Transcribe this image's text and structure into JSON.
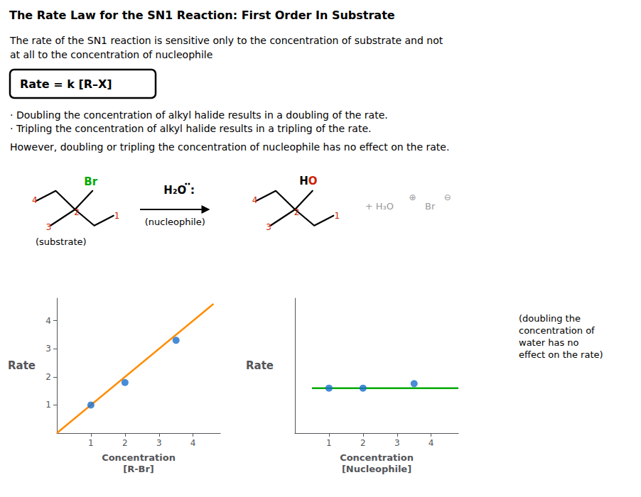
{
  "chart_data": [
    {
      "type": "line",
      "title": "The Rate Law for the SN1 Reaction: First Order In Substrate",
      "annotations": [
        {
          "text": "The rate of the SN1 reaction is sensitive only to the concentration of substrate and not"
        },
        {
          "text": "at all to the concentration of nucleophile"
        },
        {
          "text": "Rate = k [R–X]"
        },
        {
          "text": "· Doubling the concentration of alkyl halide results in a doubling of the rate."
        },
        {
          "text": "· Tripling the concentration of alkyl halide results in a tripling of the rate."
        },
        {
          "text": "However, doubling or tripling the concentration of nucleophile has no effect on the rate."
        },
        {
          "text": "Br",
          "color": "#00aa00"
        },
        {
          "text": "4",
          "color": "#cc2200"
        },
        {
          "text": "2",
          "color": "#cc2200"
        },
        {
          "text": "3",
          "color": "#cc2200"
        },
        {
          "text": "1",
          "color": "#cc2200"
        },
        {
          "text": "(substrate)"
        },
        {
          "text": "H₂O"
        },
        {
          "text": ":"
        },
        {
          "text": "(nucleophile)"
        },
        {
          "text": "H"
        },
        {
          "text": "O",
          "color": "#cc2200"
        },
        {
          "text": "4",
          "color": "#cc2200"
        },
        {
          "text": "2",
          "color": "#cc2200"
        },
        {
          "text": "3",
          "color": "#cc2200"
        },
        {
          "text": "1",
          "color": "#cc2200"
        },
        {
          "text": "+ H₃O",
          "color": "#999999"
        },
        {
          "text": "⊕",
          "color": "#999999"
        },
        {
          "text": "Br",
          "color": "#999999"
        },
        {
          "text": "⊖",
          "color": "#999999"
        }
      ],
      "xlabel": "Concentration\n[R-Br]",
      "ylabel": "Rate",
      "series": [
        {
          "type": "line",
          "color": "#FF8C00",
          "x": [
            0,
            4.6
          ],
          "values": [
            0,
            4.6
          ]
        },
        {
          "type": "scatter",
          "color": "#1a6fcc",
          "x": [
            1,
            2,
            3.5
          ],
          "values": [
            1,
            1.8,
            3.3
          ]
        }
      ],
      "xlim": [
        0,
        4.8
      ],
      "ylim": [
        0,
        4.8
      ],
      "xticks": [
        1,
        2,
        3,
        4
      ],
      "yticks": [
        1,
        2,
        3,
        4
      ],
      "grid": false
    },
    {
      "type": "line",
      "annotations": [
        {
          "text": "(doubling the\nconcentration of\nwater has no\neffect on the rate)"
        }
      ],
      "xlabel": "Concentration\n[Nucleophile]",
      "ylabel": "Rate",
      "series": [
        {
          "type": "line",
          "color": "#00aa00",
          "x": [
            0.5,
            4.8
          ],
          "values": [
            1.0,
            1.0
          ]
        },
        {
          "type": "scatter",
          "color": "#1a6fcc",
          "x": [
            1,
            2,
            3.5
          ],
          "values": [
            1.0,
            1.0,
            1.1
          ]
        }
      ],
      "xlim": [
        0,
        4.8
      ],
      "ylim": [
        0,
        3.0
      ],
      "xticks": [
        1,
        2,
        3,
        4
      ],
      "tick_labels": "x",
      "grid": false
    }
  ]
}
